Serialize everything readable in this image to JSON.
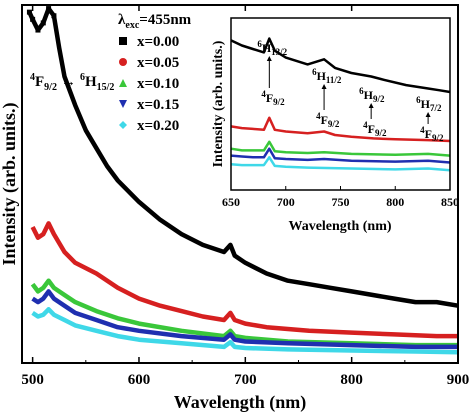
{
  "chart_data": [
    {
      "type": "line",
      "xlabel": "Wavelength (nm)",
      "ylabel": "Intensity (arb. units.)",
      "xlim": [
        490,
        900
      ],
      "ylim": [
        0,
        100
      ],
      "xticks": [
        "500",
        "600",
        "700",
        "800",
        "900"
      ],
      "legend": {
        "title_main": "λ",
        "title_sub": "exc",
        "title_rest": "=455nm",
        "placement": "top-left"
      },
      "annotation": {
        "lower_main": "4",
        "lower_mid": "F",
        "lower_sub": "9/2",
        "arrow": "→",
        "upper_main": "6",
        "upper_mid": "H",
        "upper_sub": "15/2"
      },
      "series": [
        {
          "name": "x=0.00",
          "color": "#000000",
          "marker": "square",
          "points": [
            [
              497,
              98
            ],
            [
              500,
              96
            ],
            [
              505,
              93
            ],
            [
              510,
              95
            ],
            [
              515,
              99
            ],
            [
              520,
              97
            ],
            [
              525,
              88
            ],
            [
              530,
              80
            ],
            [
              540,
              72
            ],
            [
              550,
              65
            ],
            [
              560,
              60
            ],
            [
              570,
              55
            ],
            [
              580,
              51
            ],
            [
              600,
              45
            ],
            [
              620,
              40
            ],
            [
              640,
              36
            ],
            [
              660,
              33
            ],
            [
              680,
              31
            ],
            [
              686,
              33
            ],
            [
              690,
              30
            ],
            [
              700,
              28
            ],
            [
              720,
              25
            ],
            [
              740,
              23
            ],
            [
              760,
              22
            ],
            [
              780,
              21
            ],
            [
              800,
              20
            ],
            [
              820,
              19
            ],
            [
              840,
              18
            ],
            [
              860,
              17
            ],
            [
              880,
              17
            ],
            [
              900,
              16
            ]
          ]
        },
        {
          "name": "x=0.05",
          "color": "#d62020",
          "marker": "circle",
          "points": [
            [
              500,
              38
            ],
            [
              505,
              35
            ],
            [
              510,
              36
            ],
            [
              515,
              39
            ],
            [
              520,
              36
            ],
            [
              530,
              31
            ],
            [
              540,
              28
            ],
            [
              560,
              25
            ],
            [
              580,
              21
            ],
            [
              600,
              18
            ],
            [
              620,
              16
            ],
            [
              640,
              14.5
            ],
            [
              660,
              13
            ],
            [
              680,
              12
            ],
            [
              686,
              14
            ],
            [
              690,
              12
            ],
            [
              700,
              11
            ],
            [
              720,
              10
            ],
            [
              760,
              9
            ],
            [
              800,
              8.5
            ],
            [
              840,
              8
            ],
            [
              880,
              7.5
            ],
            [
              900,
              7.5
            ]
          ]
        },
        {
          "name": "x=0.10",
          "color": "#3ac73a",
          "marker": "triangle-up",
          "points": [
            [
              500,
              22
            ],
            [
              505,
              20
            ],
            [
              510,
              21
            ],
            [
              515,
              23
            ],
            [
              520,
              21
            ],
            [
              530,
              19
            ],
            [
              540,
              17
            ],
            [
              560,
              14.5
            ],
            [
              580,
              12.5
            ],
            [
              600,
              11
            ],
            [
              640,
              9
            ],
            [
              680,
              7.5
            ],
            [
              686,
              9
            ],
            [
              690,
              7.5
            ],
            [
              700,
              7
            ],
            [
              740,
              6
            ],
            [
              800,
              5.5
            ],
            [
              860,
              5
            ],
            [
              900,
              5
            ]
          ]
        },
        {
          "name": "x=0.15",
          "color": "#1f2fb0",
          "marker": "triangle-down",
          "points": [
            [
              500,
              18
            ],
            [
              505,
              17
            ],
            [
              510,
              18
            ],
            [
              515,
              20
            ],
            [
              520,
              18
            ],
            [
              530,
              16
            ],
            [
              540,
              14
            ],
            [
              560,
              12
            ],
            [
              580,
              10
            ],
            [
              600,
              9
            ],
            [
              640,
              7.5
            ],
            [
              680,
              6.5
            ],
            [
              686,
              8
            ],
            [
              690,
              6.5
            ],
            [
              700,
              6
            ],
            [
              740,
              5.5
            ],
            [
              800,
              5
            ],
            [
              860,
              4.5
            ],
            [
              900,
              4.5
            ]
          ]
        },
        {
          "name": "x=0.20",
          "color": "#3fd8e8",
          "marker": "diamond",
          "points": [
            [
              500,
              14
            ],
            [
              505,
              13
            ],
            [
              510,
              13.5
            ],
            [
              515,
              15
            ],
            [
              520,
              13.5
            ],
            [
              530,
              12
            ],
            [
              540,
              10.5
            ],
            [
              560,
              9
            ],
            [
              580,
              7.5
            ],
            [
              600,
              6.5
            ],
            [
              640,
              5.5
            ],
            [
              680,
              4.5
            ],
            [
              686,
              5.8
            ],
            [
              690,
              4.5
            ],
            [
              700,
              4.2
            ],
            [
              740,
              3.8
            ],
            [
              800,
              3.5
            ],
            [
              860,
              3.2
            ],
            [
              900,
              3
            ]
          ]
        }
      ]
    },
    {
      "type": "line",
      "xlabel": "Wavelength (nm)",
      "ylabel": "Intensity (arb. units.)",
      "xlim": [
        650,
        850
      ],
      "ylim": [
        0,
        100
      ],
      "xticks": [
        "650",
        "700",
        "750",
        "800",
        "850"
      ],
      "annotations": [
        {
          "upper_main": "6",
          "upper_mid": "H",
          "upper_sub": "13/2",
          "lower_main": "4",
          "lower_mid": "F",
          "lower_sub": "9/2",
          "x": 685
        },
        {
          "upper_main": "6",
          "upper_mid": "H",
          "upper_sub": "11/2",
          "lower_main": "4",
          "lower_mid": "F",
          "lower_sub": "9/2",
          "x": 735
        },
        {
          "upper_main": "6",
          "upper_mid": "H",
          "upper_sub": "9/2",
          "lower_main": "4",
          "lower_mid": "F",
          "lower_sub": "9/2",
          "x": 778
        },
        {
          "upper_main": "6",
          "upper_mid": "H",
          "upper_sub": "7/2",
          "lower_main": "4",
          "lower_mid": "F",
          "lower_sub": "9/2",
          "x": 830
        }
      ],
      "series": [
        {
          "name": "x=0.00",
          "color": "#000000",
          "points": [
            [
              650,
              87
            ],
            [
              660,
              84
            ],
            [
              670,
              82
            ],
            [
              680,
              80
            ],
            [
              685,
              88
            ],
            [
              690,
              81
            ],
            [
              700,
              77
            ],
            [
              720,
              73
            ],
            [
              735,
              76
            ],
            [
              745,
              71
            ],
            [
              760,
              68
            ],
            [
              778,
              66
            ],
            [
              790,
              64
            ],
            [
              810,
              61
            ],
            [
              830,
              59
            ],
            [
              840,
              58
            ],
            [
              850,
              57
            ]
          ]
        },
        {
          "name": "x=0.05",
          "color": "#d62020",
          "points": [
            [
              650,
              37
            ],
            [
              660,
              36
            ],
            [
              670,
              35.5
            ],
            [
              680,
              35
            ],
            [
              685,
              42
            ],
            [
              690,
              35
            ],
            [
              700,
              34
            ],
            [
              720,
              33
            ],
            [
              735,
              34
            ],
            [
              745,
              32
            ],
            [
              760,
              31
            ],
            [
              780,
              30
            ],
            [
              800,
              29.5
            ],
            [
              830,
              29
            ],
            [
              850,
              28.5
            ]
          ]
        },
        {
          "name": "x=0.10",
          "color": "#3ac73a",
          "points": [
            [
              650,
              24
            ],
            [
              660,
              23
            ],
            [
              670,
              23
            ],
            [
              680,
              23
            ],
            [
              685,
              28
            ],
            [
              690,
              22.5
            ],
            [
              700,
              22
            ],
            [
              720,
              21.5
            ],
            [
              735,
              22
            ],
            [
              760,
              21
            ],
            [
              800,
              20.5
            ],
            [
              830,
              21
            ],
            [
              850,
              20
            ]
          ]
        },
        {
          "name": "x=0.15",
          "color": "#1f2fb0",
          "points": [
            [
              650,
              20
            ],
            [
              660,
              19.5
            ],
            [
              670,
              19
            ],
            [
              680,
              19
            ],
            [
              685,
              24
            ],
            [
              690,
              18.5
            ],
            [
              700,
              18
            ],
            [
              720,
              17.5
            ],
            [
              735,
              18
            ],
            [
              760,
              17
            ],
            [
              800,
              16.5
            ],
            [
              830,
              17
            ],
            [
              850,
              16
            ]
          ]
        },
        {
          "name": "x=0.20",
          "color": "#3fd8e8",
          "points": [
            [
              650,
              15
            ],
            [
              660,
              14.5
            ],
            [
              670,
              14.5
            ],
            [
              680,
              14.5
            ],
            [
              685,
              19
            ],
            [
              690,
              14
            ],
            [
              700,
              13.5
            ],
            [
              720,
              13
            ],
            [
              760,
              12.5
            ],
            [
              800,
              12
            ],
            [
              830,
              12.5
            ],
            [
              850,
              11.5
            ]
          ]
        }
      ]
    }
  ]
}
